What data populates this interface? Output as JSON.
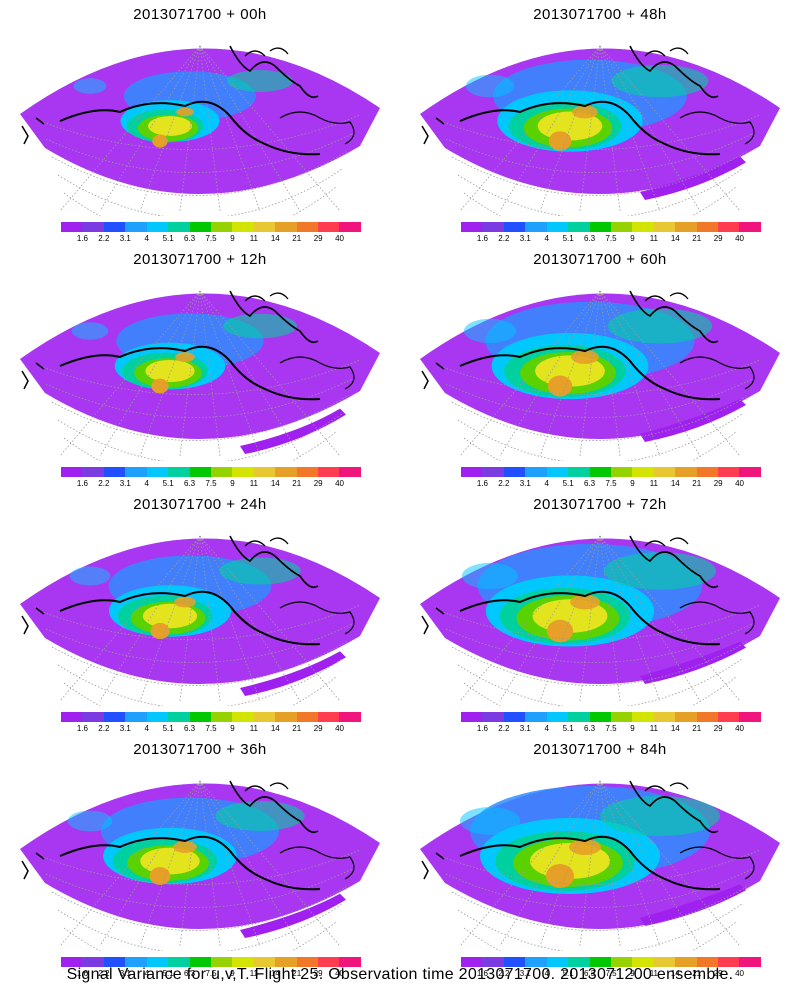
{
  "panels": [
    {
      "title": "2013071700 + 00h",
      "lead": 0
    },
    {
      "title": "2013071700 + 48h",
      "lead": 48
    },
    {
      "title": "2013071700 + 12h",
      "lead": 12
    },
    {
      "title": "2013071700 + 60h",
      "lead": 60
    },
    {
      "title": "2013071700 + 24h",
      "lead": 24
    },
    {
      "title": "2013071700 + 72h",
      "lead": 72
    },
    {
      "title": "2013071700 + 36h",
      "lead": 36
    },
    {
      "title": "2013071700 + 84h",
      "lead": 84
    }
  ],
  "colorbar": {
    "ticks": [
      "1.6",
      "2.2",
      "3.1",
      "4",
      "5.1",
      "6.3",
      "7.5",
      "9",
      "11",
      "14",
      "21",
      "29",
      "40"
    ],
    "colors": [
      "#a020f0",
      "#7a3ce0",
      "#2050ff",
      "#1ea0ff",
      "#00c8ff",
      "#00d0a0",
      "#00c800",
      "#96d200",
      "#d2e400",
      "#e8c832",
      "#e6a028",
      "#f07828",
      "#ff3c50",
      "#f0147d"
    ]
  },
  "caption": "Signal Variance for u,v,T. Flight 25. Observation time 2013071700. 2013071200 ensemble."
}
